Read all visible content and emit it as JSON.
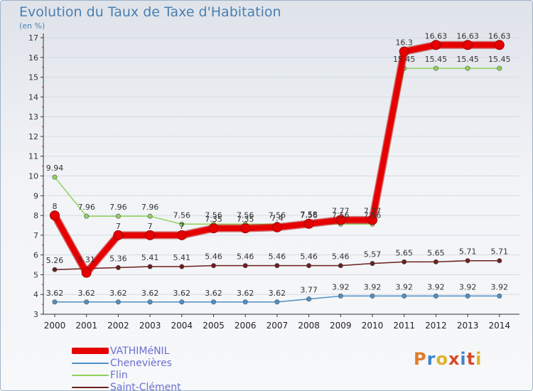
{
  "title": "Evolution du Taux de Taxe d'Habitation",
  "unit_label": "(en %)",
  "logo": {
    "text": "Proxiti",
    "letter_colors": [
      "#e07b2a",
      "#3f86c9",
      "#e0b12a",
      "#d64b2a",
      "#3f86c9",
      "#d64b2a",
      "#e0b12a"
    ]
  },
  "chart_data": {
    "type": "line",
    "title": "Evolution du Taux de Taxe d'Habitation",
    "ylabel": "(en %)",
    "xlabel": "",
    "x": [
      "2000",
      "2001",
      "2002",
      "2003",
      "2004",
      "2005",
      "2006",
      "2007",
      "2008",
      "2009",
      "2010",
      "2011",
      "2012",
      "2013",
      "2014"
    ],
    "ylim": [
      3,
      17
    ],
    "yticks": [
      3,
      4,
      5,
      6,
      7,
      8,
      9,
      10,
      11,
      12,
      13,
      14,
      15,
      16,
      17
    ],
    "grid": "horizontal",
    "legend": "bottom-left",
    "series": [
      {
        "name": "Chenevières",
        "color": "#4f8fc4",
        "values": [
          3.62,
          3.62,
          3.62,
          3.62,
          3.62,
          3.62,
          3.62,
          3.62,
          3.77,
          3.92,
          3.92,
          3.92,
          3.92,
          3.92,
          3.92
        ],
        "labels": [
          "3.62",
          "3.62",
          "3.62",
          "3.62",
          "3.62",
          "3.62",
          "3.62",
          "3.62",
          "3.77",
          "3.92",
          "3.92",
          "3.92",
          "3.92",
          "3.92",
          "3.92"
        ]
      },
      {
        "name": "Saint-Clément",
        "color": "#6b1f1f",
        "values": [
          5.26,
          5.31,
          5.36,
          5.41,
          5.41,
          5.46,
          5.46,
          5.46,
          5.46,
          5.46,
          5.57,
          5.65,
          5.65,
          5.71,
          5.71
        ],
        "labels": [
          "5.26",
          "5.31",
          "5.36",
          "5.41",
          "5.41",
          "5.46",
          "5.46",
          "5.46",
          "5.46",
          "5.46",
          "5.57",
          "5.65",
          "5.65",
          "5.71",
          "5.71"
        ]
      },
      {
        "name": "Flin",
        "color": "#8fd15a",
        "values": [
          9.94,
          7.96,
          7.96,
          7.96,
          7.56,
          7.56,
          7.56,
          7.56,
          7.56,
          7.56,
          7.56,
          15.45,
          15.45,
          15.45,
          15.45
        ],
        "labels": [
          "9.94",
          "7.96",
          "7.96",
          "7.96",
          "7.56",
          "7.56",
          "7.56",
          "7.56",
          "7.56",
          "7.56",
          "7.56",
          "15.45",
          "15.45",
          "15.45",
          "15.45"
        ]
      },
      {
        "name": "VATHIMéNIL",
        "color": "#e60000",
        "values": [
          8,
          5.1,
          7,
          7,
          7,
          7.35,
          7.35,
          7.4,
          7.58,
          7.77,
          7.77,
          16.3,
          16.63,
          16.63,
          16.63
        ],
        "labels": [
          "8",
          "",
          "7",
          "7",
          "7",
          "7.35",
          "7.35",
          "7.4",
          "7.58",
          "7.77",
          "7.77",
          "16.3",
          "16.63",
          "16.63",
          "16.63"
        ]
      }
    ]
  },
  "legend": [
    {
      "label": "VATHIMéNIL",
      "color": "#e60000",
      "thickness": 9
    },
    {
      "label": "Chenevières",
      "color": "#4f8fc4",
      "thickness": 2
    },
    {
      "label": "Flin",
      "color": "#8fd15a",
      "thickness": 2
    },
    {
      "label": "Saint-Clément",
      "color": "#6b1f1f",
      "thickness": 2
    }
  ]
}
